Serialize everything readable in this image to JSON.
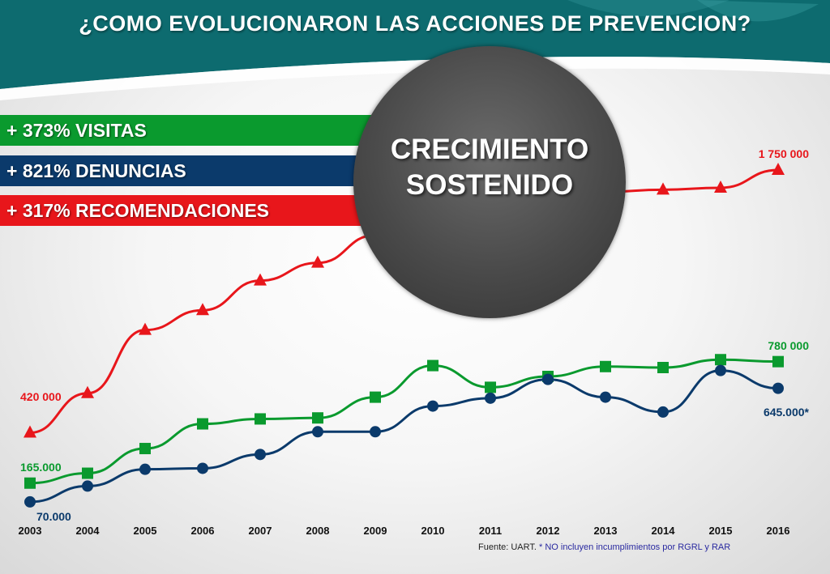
{
  "title": "¿COMO EVOLUCIONARON LAS ACCIONES DE PREVENCION?",
  "banners": [
    {
      "label": "+ 373% VISITAS",
      "color": "#0a9a2e"
    },
    {
      "label": "+ 821% DENUNCIAS",
      "color": "#0b3a6b"
    },
    {
      "label": "+ 317% RECOMENDACIONES",
      "color": "#e8161b"
    }
  ],
  "circle": {
    "line1": "CRECIMIENTO",
    "line2": "SOSTENIDO"
  },
  "source": {
    "prefix": "Fuente: UART.",
    "note": "* NO incluyen incumplimientos por  RGRL y RAR"
  },
  "colors": {
    "header": "#0d6b6f",
    "red": "#e8161b",
    "green": "#0a9a2e",
    "navy": "#0b3a6b"
  },
  "chart_data": {
    "type": "line",
    "x": [
      "2003",
      "2004",
      "2005",
      "2006",
      "2007",
      "2008",
      "2009",
      "2010",
      "2011",
      "2012",
      "2013",
      "2014",
      "2015",
      "2016"
    ],
    "ylim": [
      0,
      1900000
    ],
    "grid": false,
    "series": [
      {
        "color": "#e8161b",
        "marker": "triangle",
        "values": [
          420000,
          620000,
          940000,
          1040000,
          1190000,
          1280000,
          1420000,
          1580000,
          1610000,
          1620000,
          1640000,
          1650000,
          1660000,
          1750000
        ]
      },
      {
        "color": "#0a9a2e",
        "marker": "square",
        "values": [
          165000,
          215000,
          340000,
          465000,
          490000,
          495000,
          600000,
          760000,
          650000,
          705000,
          755000,
          750000,
          790000,
          780000
        ]
      },
      {
        "color": "#0b3a6b",
        "marker": "circle",
        "values": [
          70000,
          150000,
          235000,
          240000,
          310000,
          425000,
          425000,
          555000,
          595000,
          690000,
          600000,
          525000,
          735000,
          645000
        ]
      }
    ],
    "annotations": [
      {
        "series": 0,
        "index": 0,
        "text": "420 000"
      },
      {
        "series": 0,
        "index": 13,
        "text": "1 750 000"
      },
      {
        "series": 1,
        "index": 0,
        "text": "165.000"
      },
      {
        "series": 1,
        "index": 13,
        "text": "780 000"
      },
      {
        "series": 2,
        "index": 0,
        "text": "70.000"
      },
      {
        "series": 2,
        "index": 13,
        "text": "645.000*"
      }
    ]
  }
}
